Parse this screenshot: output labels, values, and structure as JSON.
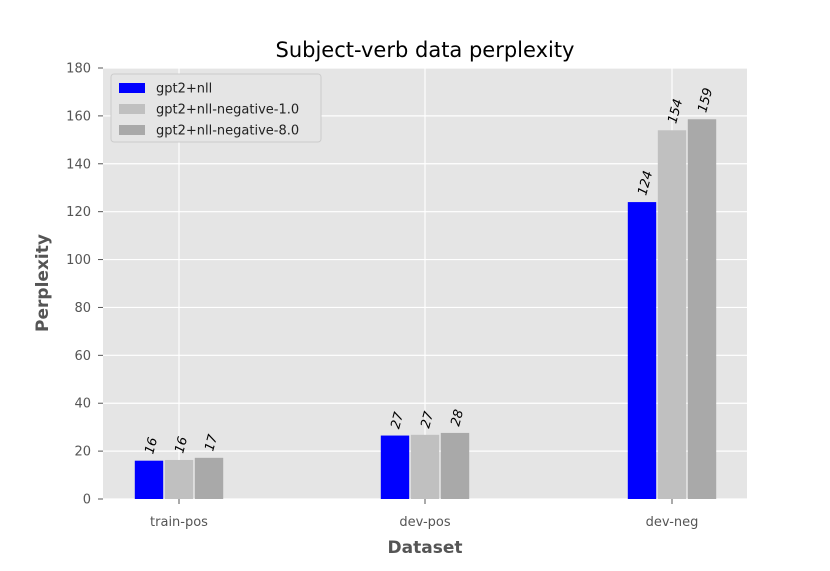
{
  "chart_data": {
    "type": "bar",
    "title": "Subject-verb data perplexity",
    "xlabel": "Dataset",
    "ylabel": "Perplexity",
    "categories": [
      "train-pos",
      "dev-pos",
      "dev-neg"
    ],
    "ylim": [
      0,
      180
    ],
    "yticks": [
      "0",
      "20",
      "40",
      "60",
      "80",
      "100",
      "120",
      "140",
      "160",
      "180"
    ],
    "grid": true,
    "legend_position": "top-left",
    "series": [
      {
        "name": "gpt2+nll",
        "color": "#0000ff",
        "values": [
          16,
          26.5,
          124
        ],
        "labels": [
          "16",
          "27",
          "124"
        ]
      },
      {
        "name": "gpt2+nll-negative-1.0",
        "color": "#c0c0c0",
        "values": [
          16.3,
          26.8,
          154
        ],
        "labels": [
          "16",
          "27",
          "154"
        ]
      },
      {
        "name": "gpt2+nll-negative-8.0",
        "color": "#a9a9a9",
        "values": [
          17.2,
          27.6,
          158.6
        ],
        "labels": [
          "17",
          "28",
          "159"
        ]
      }
    ]
  }
}
